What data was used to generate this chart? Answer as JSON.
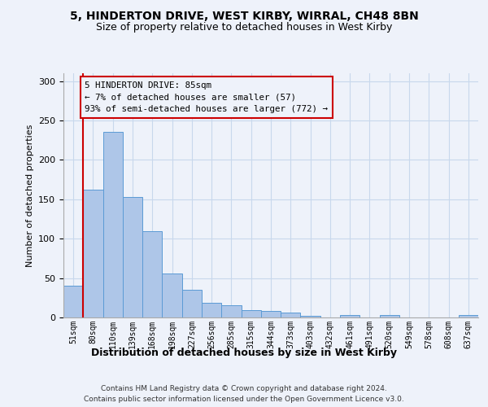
{
  "title1": "5, HINDERTON DRIVE, WEST KIRBY, WIRRAL, CH48 8BN",
  "title2": "Size of property relative to detached houses in West Kirby",
  "xlabel": "Distribution of detached houses by size in West Kirby",
  "ylabel": "Number of detached properties",
  "categories": [
    "51sqm",
    "80sqm",
    "110sqm",
    "139sqm",
    "168sqm",
    "198sqm",
    "227sqm",
    "256sqm",
    "285sqm",
    "315sqm",
    "344sqm",
    "373sqm",
    "403sqm",
    "432sqm",
    "461sqm",
    "491sqm",
    "520sqm",
    "549sqm",
    "578sqm",
    "608sqm",
    "637sqm"
  ],
  "values": [
    40,
    162,
    236,
    153,
    110,
    56,
    35,
    19,
    15,
    9,
    8,
    6,
    2,
    0,
    3,
    0,
    3,
    0,
    0,
    0,
    3
  ],
  "bar_color": "#aec6e8",
  "bar_edge_color": "#5b9bd5",
  "grid_color": "#c8d8ec",
  "annotation_line_color": "#cc0000",
  "annotation_box_text": "5 HINDERTON DRIVE: 85sqm\n← 7% of detached houses are smaller (57)\n93% of semi-detached houses are larger (772) →",
  "annotation_box_color": "#cc0000",
  "footer1": "Contains HM Land Registry data © Crown copyright and database right 2024.",
  "footer2": "Contains public sector information licensed under the Open Government Licence v3.0.",
  "ylim": [
    0,
    310
  ],
  "background_color": "#eef2fa"
}
